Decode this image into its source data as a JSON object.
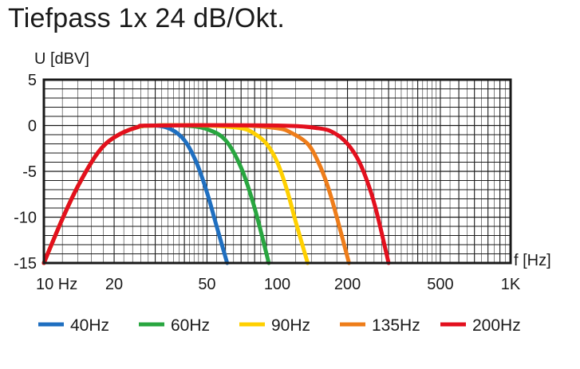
{
  "chart_data": {
    "type": "line",
    "title": "Tiefpass 1x 24 dB/Okt.",
    "ylabel": "U [dBV]",
    "xlabel": "f [Hz]",
    "xscale": "log",
    "xlim": [
      10,
      1000
    ],
    "ylim": [
      -15,
      5
    ],
    "grid": true,
    "legend_position": "bottom",
    "x_ticks": [
      {
        "value": 10,
        "label": "10 Hz"
      },
      {
        "value": 20,
        "label": "20"
      },
      {
        "value": 50,
        "label": "50"
      },
      {
        "value": 100,
        "label": "100"
      },
      {
        "value": 200,
        "label": "200"
      },
      {
        "value": 500,
        "label": "500"
      },
      {
        "value": 1000,
        "label": "1K"
      }
    ],
    "y_ticks": [
      {
        "value": 5,
        "label": "5"
      },
      {
        "value": 0,
        "label": "0"
      },
      {
        "value": -5,
        "label": "-5"
      },
      {
        "value": -10,
        "label": "-10"
      },
      {
        "value": -15,
        "label": "-15"
      }
    ],
    "series": [
      {
        "name": "40Hz",
        "color": "#1f6fc0",
        "x": [
          10,
          12,
          14,
          17,
          20,
          25,
          30,
          35,
          40,
          45,
          50,
          55,
          61
        ],
        "y": [
          -15,
          -10.2,
          -6.6,
          -3,
          -1.3,
          -0.2,
          0,
          -0.4,
          -1.6,
          -4,
          -7.3,
          -11,
          -15
        ]
      },
      {
        "name": "60Hz",
        "color": "#29a640",
        "x": [
          10,
          12,
          14,
          17,
          20,
          25,
          30,
          40,
          50,
          60,
          70,
          80,
          92
        ],
        "y": [
          -15,
          -10.2,
          -6.6,
          -3,
          -1.3,
          -0.2,
          0,
          0,
          -0.4,
          -1.6,
          -4.6,
          -9,
          -15
        ]
      },
      {
        "name": "90Hz",
        "color": "#ffd000",
        "x": [
          10,
          12,
          14,
          17,
          20,
          25,
          30,
          50,
          70,
          80,
          90,
          100,
          110,
          120,
          135
        ],
        "y": [
          -15,
          -10.2,
          -6.6,
          -3,
          -1.3,
          -0.2,
          0,
          0,
          -0.3,
          -0.9,
          -2,
          -4,
          -7,
          -10.5,
          -15
        ]
      },
      {
        "name": "135Hz",
        "color": "#ee7d1a",
        "x": [
          10,
          12,
          14,
          17,
          20,
          25,
          30,
          70,
          100,
          115,
          135,
          150,
          165,
          180,
          203
        ],
        "y": [
          -15,
          -10.2,
          -6.6,
          -3,
          -1.3,
          -0.2,
          0,
          0,
          -0.3,
          -0.8,
          -2,
          -4,
          -6.7,
          -10,
          -15
        ]
      },
      {
        "name": "200Hz",
        "color": "#e3101e",
        "x": [
          10,
          12,
          14,
          17,
          20,
          25,
          30,
          100,
          150,
          175,
          200,
          225,
          250,
          270,
          300
        ],
        "y": [
          -15,
          -10.2,
          -6.6,
          -3,
          -1.3,
          -0.2,
          0,
          0,
          -0.3,
          -0.8,
          -2,
          -4,
          -7,
          -10,
          -15
        ]
      }
    ]
  }
}
